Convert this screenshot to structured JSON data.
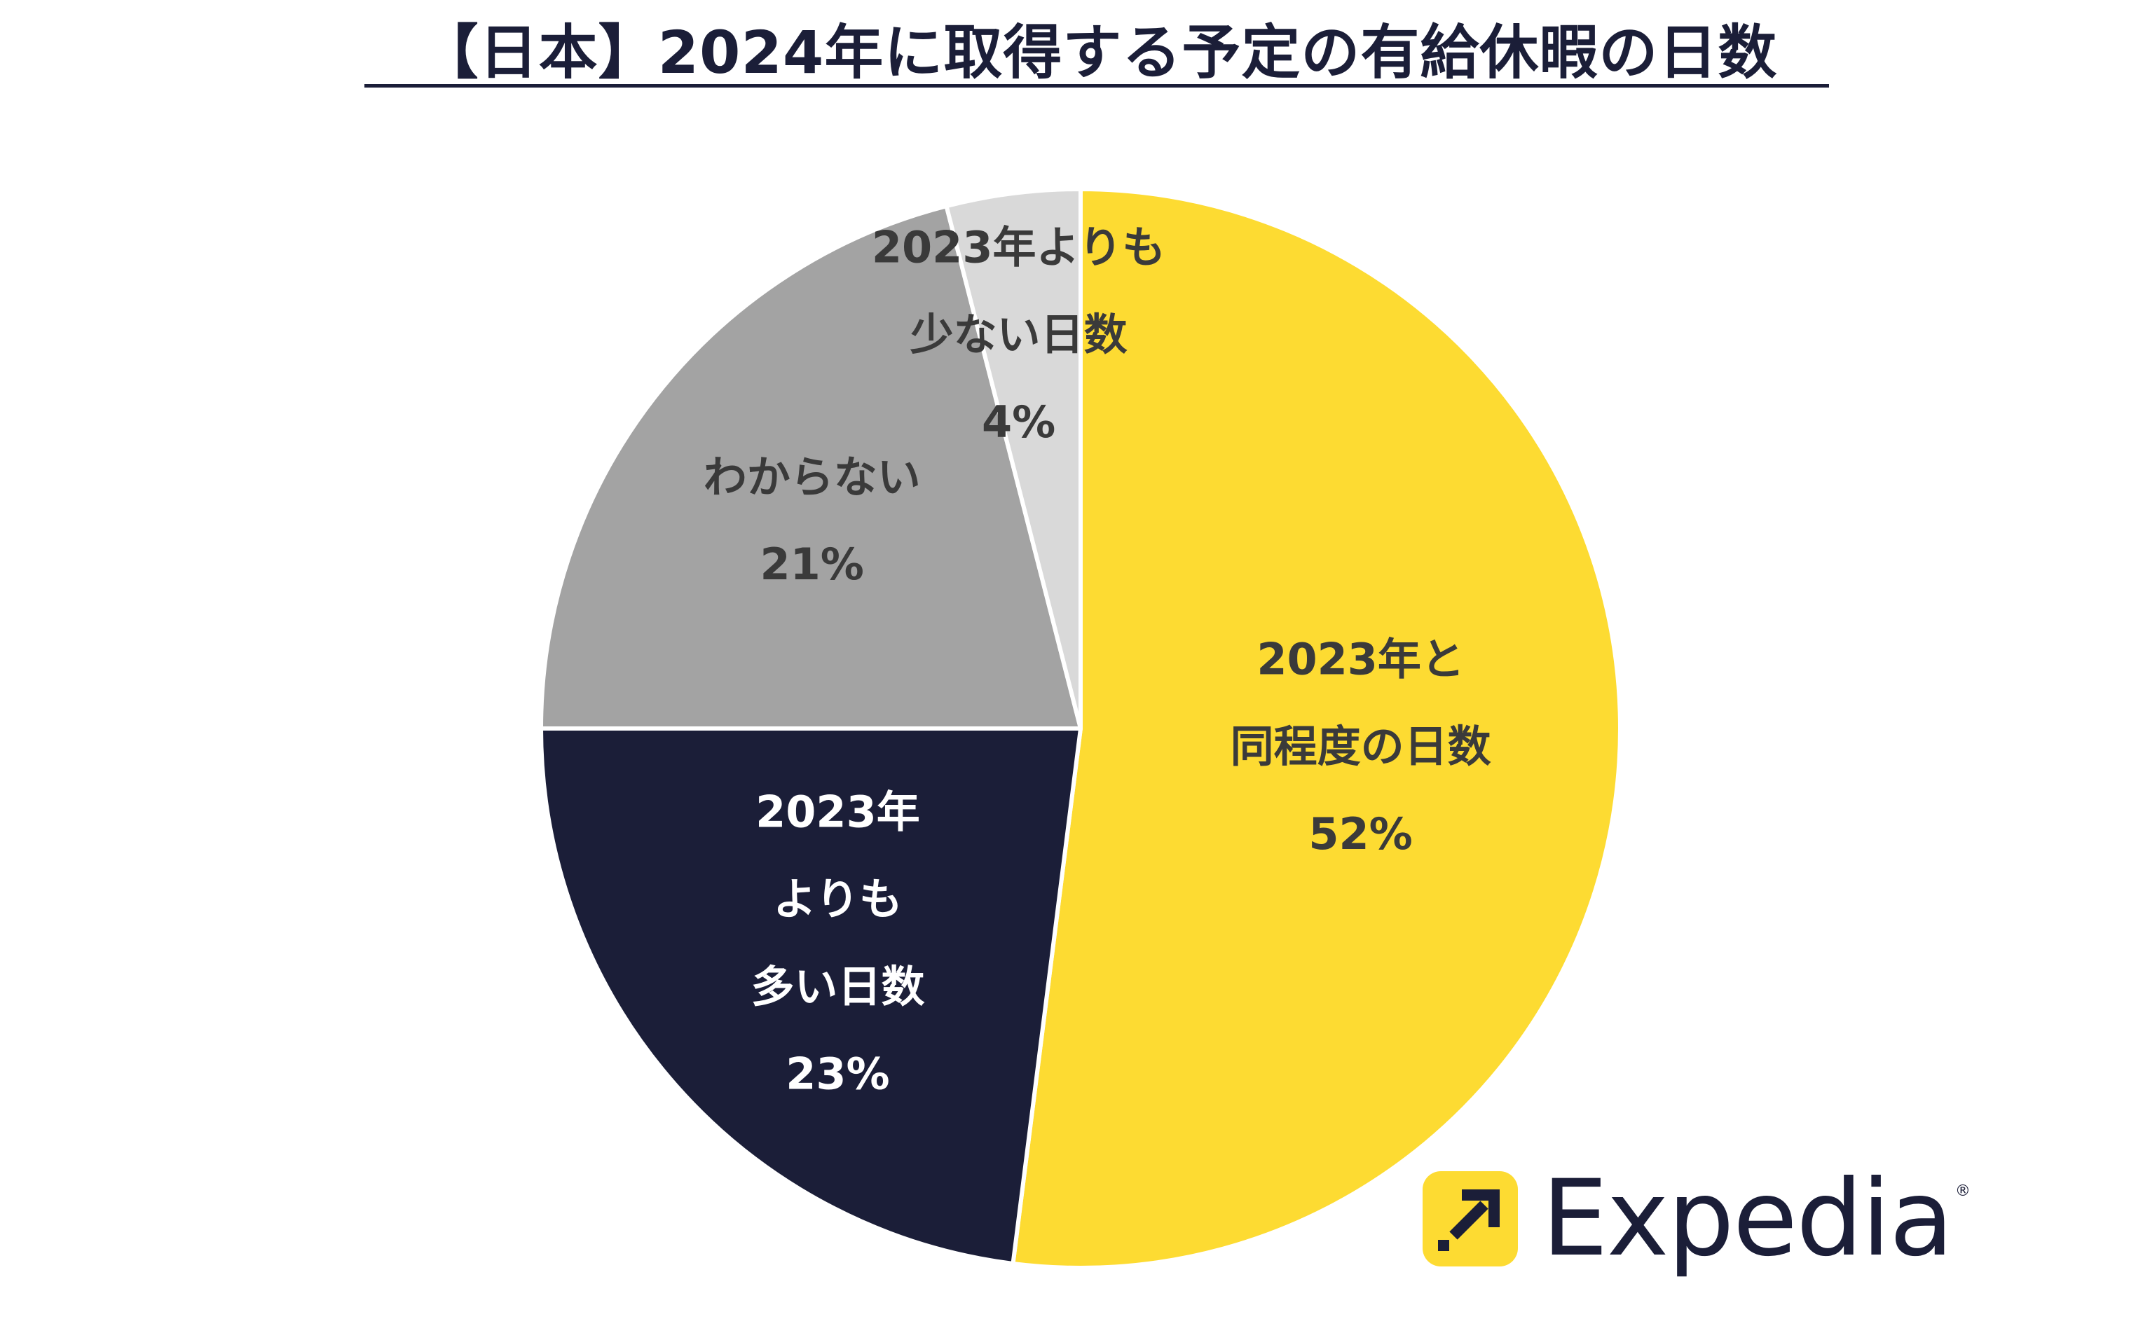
{
  "chart_data": {
    "type": "pie",
    "title": "【日本】2024年に取得する予定の有給休暇の日数",
    "slices": [
      {
        "label_lines": [
          "2023年と",
          "同程度の日数"
        ],
        "value": 52,
        "value_label": "52%",
        "color": "#fddb32",
        "text_color": "#3a3a3a"
      },
      {
        "label_lines": [
          "2023年",
          "よりも",
          "多い日数"
        ],
        "value": 23,
        "value_label": "23%",
        "color": "#1b1e38",
        "text_color": "#ffffff"
      },
      {
        "label_lines": [
          "わからない"
        ],
        "value": 21,
        "value_label": "21%",
        "color": "#a3a3a3",
        "text_color": "#3a3a3a"
      },
      {
        "label_lines": [
          "2023年よりも",
          "少ない日数"
        ],
        "value": 4,
        "value_label": "4%",
        "color": "#d9d9d9",
        "text_color": "#3a3a3a"
      }
    ],
    "start": "12 o'clock",
    "direction": "clockwise",
    "legend": "none"
  },
  "logo": {
    "text": "Expedia",
    "registered": "®",
    "brand_color": "#fddb32",
    "icon": "arrow-up-right-icon"
  }
}
